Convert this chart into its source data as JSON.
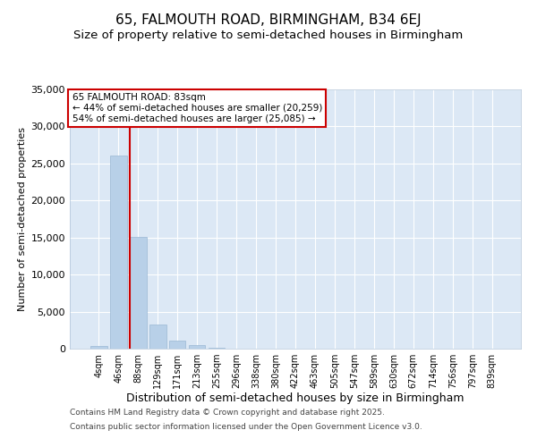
{
  "title": "65, FALMOUTH ROAD, BIRMINGHAM, B34 6EJ",
  "subtitle": "Size of property relative to semi-detached houses in Birmingham",
  "xlabel": "Distribution of semi-detached houses by size in Birmingham",
  "ylabel": "Number of semi-detached properties",
  "categories": [
    "4sqm",
    "46sqm",
    "88sqm",
    "129sqm",
    "171sqm",
    "213sqm",
    "255sqm",
    "296sqm",
    "338sqm",
    "380sqm",
    "422sqm",
    "463sqm",
    "505sqm",
    "547sqm",
    "589sqm",
    "630sqm",
    "672sqm",
    "714sqm",
    "756sqm",
    "797sqm",
    "839sqm"
  ],
  "values": [
    400,
    26100,
    15100,
    3300,
    1050,
    450,
    150,
    50,
    0,
    0,
    0,
    0,
    0,
    0,
    0,
    0,
    0,
    0,
    0,
    0,
    0
  ],
  "bar_color": "#b8d0e8",
  "bar_edge_color": "#9ab8d4",
  "vline_x_index": 2,
  "vline_color": "#cc0000",
  "annotation_title": "65 FALMOUTH ROAD: 83sqm",
  "annotation_line1": "← 44% of semi-detached houses are smaller (20,259)",
  "annotation_line2": "54% of semi-detached houses are larger (25,085) →",
  "annotation_box_facecolor": "#ffffff",
  "annotation_border_color": "#cc0000",
  "annotation_text_color": "#000000",
  "ylim": [
    0,
    35000
  ],
  "yticks": [
    0,
    5000,
    10000,
    15000,
    20000,
    25000,
    30000,
    35000
  ],
  "plot_background": "#dce8f5",
  "grid_color": "#ffffff",
  "footer_line1": "Contains HM Land Registry data © Crown copyright and database right 2025.",
  "footer_line2": "Contains public sector information licensed under the Open Government Licence v3.0.",
  "title_fontsize": 11,
  "subtitle_fontsize": 9.5,
  "xlabel_fontsize": 9,
  "ylabel_fontsize": 8,
  "tick_fontsize": 8,
  "annot_fontsize": 7.5,
  "footer_fontsize": 6.5
}
